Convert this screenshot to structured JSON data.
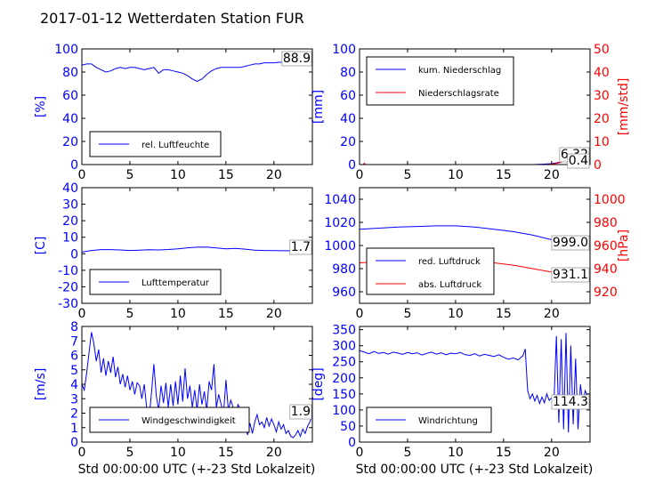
{
  "figure": {
    "title": "2017-01-12 Wetterdaten Station FUR",
    "xlabel": "Std 00:00:00 UTC (+-23 Std Lokalzeit)",
    "colors": {
      "left_axis": "#0000ff",
      "right_axis": "#ff0000",
      "frame": "#000000"
    }
  },
  "chart_data": [
    {
      "id": "humidity",
      "type": "line",
      "ylabel": "[%]",
      "ylim": [
        0,
        100
      ],
      "yticks": [
        0,
        20,
        40,
        60,
        80,
        100
      ],
      "xlim": [
        0,
        24
      ],
      "xticks": [
        0,
        5,
        10,
        15,
        20
      ],
      "xlabel": "",
      "legend_placement": "lower-left",
      "series": [
        {
          "name": "rel. Luftfeuchte",
          "color": "#0000ff",
          "axis": "left",
          "x": [
            0,
            0.5,
            1,
            1.5,
            2,
            2.5,
            3,
            3.5,
            4,
            4.5,
            5,
            5.5,
            6,
            6.5,
            7,
            7.5,
            8,
            8.5,
            9,
            9.5,
            10,
            10.5,
            11,
            11.5,
            12,
            12.5,
            13,
            13.5,
            14,
            14.5,
            15,
            15.5,
            16,
            16.5,
            17,
            17.5,
            18,
            18.5,
            19,
            19.5,
            20,
            20.5,
            21,
            21.5,
            22,
            22.5,
            23,
            23.5,
            24
          ],
          "y": [
            86,
            87,
            87,
            84,
            82,
            80,
            81,
            83,
            84,
            83,
            84,
            84,
            83,
            82,
            83,
            84,
            79,
            82,
            82,
            81,
            80,
            79,
            77,
            74,
            72,
            74,
            78,
            81,
            83,
            84,
            84,
            84,
            84,
            84,
            85,
            86,
            87,
            87,
            88,
            88,
            88,
            88.5,
            88.5,
            89,
            89,
            89,
            89,
            89,
            88.9
          ]
        }
      ],
      "annotation": "88.9"
    },
    {
      "id": "precipitation",
      "type": "line",
      "ylabel": "[mm]",
      "ylim": [
        0,
        100
      ],
      "yticks": [
        0,
        20,
        40,
        60,
        80,
        100
      ],
      "ylabel_right": "[mm/std]",
      "ylim_right": [
        0,
        50
      ],
      "yticks_right": [
        0,
        10,
        20,
        30,
        40,
        50
      ],
      "xlim": [
        0,
        24
      ],
      "xticks": [
        0,
        5,
        10,
        15,
        20
      ],
      "xlabel": "",
      "legend_placement": "upper-left",
      "series": [
        {
          "name": "kum. Niederschlag",
          "color": "#0000ff",
          "axis": "left",
          "x": [
            0,
            18,
            19,
            20,
            20.5,
            21,
            21.5,
            22,
            22.5,
            23,
            23.5,
            24
          ],
          "y": [
            0,
            0,
            0.3,
            0.8,
            1.5,
            2.5,
            3.5,
            4.5,
            5.2,
            5.8,
            6.2,
            6.32
          ]
        },
        {
          "name": "Niederschlagsrate",
          "color": "#ff0000",
          "axis": "right",
          "x": [
            0,
            0.4,
            0.5,
            0.6,
            5,
            10,
            15,
            19.5,
            20.5,
            21,
            21.5,
            22,
            22.5,
            23,
            23.3,
            23.6,
            24
          ],
          "y": [
            0,
            0,
            0.6,
            0,
            0,
            0,
            0,
            0,
            0.5,
            1.0,
            2.0,
            3.0,
            4.5,
            2.0,
            4.0,
            1.5,
            0.4
          ]
        }
      ],
      "annotations": [
        "6.32",
        "0.4"
      ]
    },
    {
      "id": "temperature",
      "type": "line",
      "ylabel": "[C]",
      "ylim": [
        -30,
        40
      ],
      "yticks": [
        -30,
        -20,
        -10,
        0,
        10,
        20,
        30,
        40
      ],
      "xlim": [
        0,
        24
      ],
      "xticks": [
        0,
        5,
        10,
        15,
        20
      ],
      "xlabel": "",
      "legend_placement": "lower-left",
      "series": [
        {
          "name": "Lufttemperatur",
          "color": "#0000ff",
          "axis": "left",
          "x": [
            0,
            1,
            2,
            3,
            4,
            5,
            6,
            7,
            8,
            9,
            10,
            11,
            12,
            13,
            14,
            15,
            16,
            17,
            18,
            19,
            20,
            21,
            22,
            23,
            24
          ],
          "y": [
            1.0,
            2.0,
            2.5,
            2.5,
            2.3,
            2.0,
            2.2,
            2.4,
            2.3,
            2.6,
            3.0,
            3.6,
            4.0,
            4.1,
            3.5,
            3.0,
            3.2,
            2.8,
            2.2,
            2.0,
            1.9,
            1.8,
            1.8,
            1.7,
            1.7
          ]
        }
      ],
      "annotation": "1.7"
    },
    {
      "id": "pressure",
      "type": "line",
      "ylabel": "",
      "ylim": [
        950,
        1050
      ],
      "yticks": [
        960,
        980,
        1000,
        1020,
        1040
      ],
      "ylabel_right": "[hPa]",
      "ylim_right": [
        910,
        1010
      ],
      "yticks_right": [
        920,
        940,
        960,
        980,
        1000
      ],
      "xlim": [
        0,
        24
      ],
      "xticks": [
        0,
        5,
        10,
        15,
        20
      ],
      "xlabel": "",
      "legend_placement": "lower-left",
      "series": [
        {
          "name": "red. Luftdruck",
          "color": "#0000ff",
          "axis": "left",
          "x": [
            0,
            2,
            4,
            6,
            8,
            10,
            12,
            14,
            16,
            18,
            20,
            22,
            24
          ],
          "y": [
            1014,
            1015,
            1016,
            1016.5,
            1017,
            1017,
            1016,
            1014,
            1012,
            1009,
            1005,
            1001,
            999.0
          ]
        },
        {
          "name": "abs. Luftdruck",
          "color": "#ff0000",
          "axis": "right",
          "x": [
            0,
            2,
            4,
            6,
            8,
            10,
            12,
            14,
            16,
            18,
            20,
            22,
            24
          ],
          "y": [
            945,
            946,
            947,
            947.5,
            948,
            947.5,
            946.5,
            945,
            943,
            940,
            937,
            933,
            931.1
          ]
        }
      ],
      "annotations": [
        "999.0",
        "931.1"
      ]
    },
    {
      "id": "windspeed",
      "type": "line",
      "ylabel": "[m/s]",
      "ylim": [
        0,
        8
      ],
      "yticks": [
        0,
        1,
        2,
        3,
        4,
        5,
        6,
        7,
        8
      ],
      "xlim": [
        0,
        24
      ],
      "xticks": [
        0,
        5,
        10,
        15,
        20
      ],
      "xlabel": "Std 00:00:00 UTC (+-23 Std Lokalzeit)",
      "legend_placement": "lower-left",
      "series": [
        {
          "name": "Windgeschwindigkeit",
          "color": "#0000ff",
          "axis": "left",
          "x": [
            0,
            0.25,
            0.5,
            0.75,
            1,
            1.25,
            1.5,
            1.75,
            2,
            2.25,
            2.5,
            2.75,
            3,
            3.25,
            3.5,
            3.75,
            4,
            4.25,
            4.5,
            4.75,
            5,
            5.25,
            5.5,
            5.75,
            6,
            6.25,
            6.5,
            6.75,
            7,
            7.25,
            7.5,
            7.75,
            8,
            8.25,
            8.5,
            8.75,
            9,
            9.25,
            9.5,
            9.75,
            10,
            10.25,
            10.5,
            10.75,
            11,
            11.25,
            11.5,
            11.75,
            12,
            12.25,
            12.5,
            12.75,
            13,
            13.25,
            13.5,
            13.75,
            14,
            14.25,
            14.5,
            14.75,
            15,
            15.25,
            15.5,
            15.75,
            16,
            16.25,
            16.5,
            16.75,
            17,
            17.25,
            17.5,
            17.75,
            18,
            18.25,
            18.5,
            18.75,
            19,
            19.25,
            19.5,
            19.75,
            20,
            20.25,
            20.5,
            20.75,
            21,
            21.25,
            21.5,
            21.75,
            22,
            22.25,
            22.5,
            22.75,
            23,
            23.25,
            23.5,
            23.75,
            24
          ],
          "y": [
            4.0,
            3.6,
            4.8,
            6.2,
            7.6,
            6.8,
            5.6,
            6.4,
            4.8,
            5.8,
            4.6,
            5.6,
            4.8,
            5.9,
            4.5,
            5.2,
            4.0,
            4.7,
            3.8,
            4.6,
            3.6,
            4.2,
            3.3,
            4.1,
            3.9,
            3.0,
            4.0,
            2.4,
            1.6,
            3.4,
            5.4,
            3.2,
            2.2,
            3.9,
            2.7,
            4.1,
            2.4,
            4.0,
            2.5,
            4.2,
            2.6,
            4.6,
            2.8,
            5.1,
            3.0,
            3.9,
            2.4,
            3.6,
            2.2,
            4.0,
            2.6,
            3.5,
            2.2,
            4.2,
            3.6,
            5.4,
            2.4,
            3.3,
            2.6,
            2.0,
            4.3,
            2.2,
            2.9,
            2.4,
            1.8,
            2.6,
            2.3,
            1.6,
            1.2,
            0.5,
            1.3,
            0.6,
            1.4,
            1.9,
            1.2,
            1.4,
            1.0,
            1.7,
            1.1,
            1.6,
            1.2,
            0.7,
            1.4,
            0.9,
            1.2,
            0.6,
            0.8,
            0.4,
            0.3,
            0.5,
            0.8,
            0.4,
            0.9,
            0.6,
            1.1,
            1.4,
            1.9
          ]
        }
      ],
      "annotation": "1.9"
    },
    {
      "id": "winddirection",
      "type": "line",
      "ylabel": "[deg]",
      "ylim": [
        0,
        360
      ],
      "yticks": [
        0,
        50,
        100,
        150,
        200,
        250,
        300,
        350
      ],
      "xlim": [
        0,
        24
      ],
      "xticks": [
        0,
        5,
        10,
        15,
        20
      ],
      "xlabel": "Std 00:00:00 UTC (+-23 Std Lokalzeit)",
      "legend_placement": "lower-left",
      "series": [
        {
          "name": "Windrichtung",
          "color": "#0000ff",
          "axis": "left",
          "x": [
            0,
            0.5,
            1,
            1.5,
            2,
            2.5,
            3,
            3.5,
            4,
            4.5,
            5,
            5.5,
            6,
            6.5,
            7,
            7.5,
            8,
            8.5,
            9,
            9.5,
            10,
            10.5,
            11,
            11.5,
            12,
            12.5,
            13,
            13.5,
            14,
            14.5,
            15,
            15.5,
            16,
            16.5,
            17,
            17.25,
            17.5,
            17.75,
            18,
            18.25,
            18.5,
            18.75,
            19,
            19.25,
            19.5,
            19.75,
            20,
            20.25,
            20.5,
            20.75,
            21,
            21.25,
            21.5,
            21.75,
            22,
            22.25,
            22.5,
            22.75,
            23,
            23.25,
            23.5,
            23.75,
            24
          ],
          "y": [
            285,
            280,
            275,
            282,
            276,
            279,
            274,
            280,
            277,
            273,
            279,
            275,
            278,
            271,
            276,
            280,
            274,
            278,
            272,
            277,
            275,
            279,
            272,
            270,
            275,
            268,
            273,
            270,
            266,
            272,
            264,
            258,
            262,
            256,
            268,
            290,
            160,
            135,
            150,
            128,
            145,
            120,
            140,
            122,
            150,
            130,
            138,
            125,
            330,
            60,
            320,
            40,
            340,
            30,
            300,
            55,
            260,
            40,
            180,
            120,
            160,
            140,
            114.3
          ]
        }
      ],
      "annotation": "114.3"
    }
  ]
}
